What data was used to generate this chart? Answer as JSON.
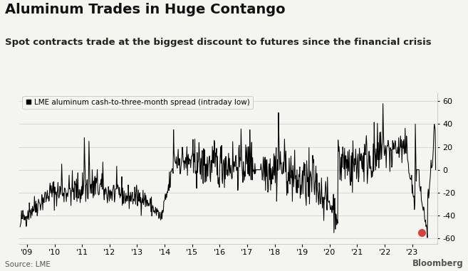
{
  "title": "Aluminum Trades in Huge Contango",
  "subtitle": "Spot contracts trade at the biggest discount to futures since the financial crisis",
  "legend_label": "LME aluminum cash-to-three-month spread (intraday low)",
  "source": "Source: LME",
  "watermark": "Bloomberg",
  "ylabel_ticks": [
    60,
    40,
    20,
    0,
    -20,
    -40,
    -60
  ],
  "ylim": [
    -65,
    68
  ],
  "xlim_start": 2008.7,
  "xlim_end": 2023.92,
  "xtick_years": [
    "'09",
    "'10",
    "'11",
    "'12",
    "'13",
    "'14",
    "'15",
    "'16",
    "'17",
    "'18",
    "'19",
    "'20",
    "'21",
    "'22",
    "'23"
  ],
  "xtick_positions": [
    2009,
    2010,
    2011,
    2012,
    2013,
    2014,
    2015,
    2016,
    2017,
    2018,
    2019,
    2020,
    2021,
    2022,
    2023
  ],
  "bg_color": "#F5F5F0",
  "line_color": "#000000",
  "grid_color": "#CCCCCC",
  "highlight_dot_color": "#D94040",
  "highlight_x": 2023.35,
  "highlight_y": -55,
  "title_fontsize": 14,
  "subtitle_fontsize": 9.5,
  "legend_fontsize": 7.5,
  "tick_fontsize": 8,
  "source_fontsize": 7.5
}
